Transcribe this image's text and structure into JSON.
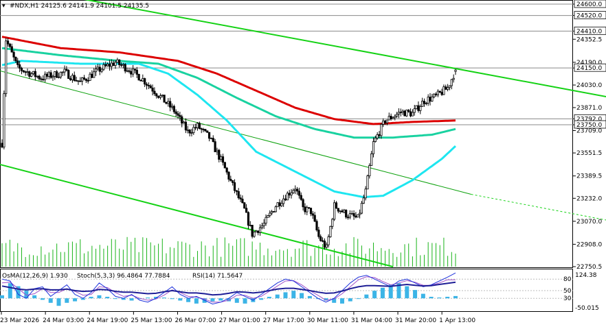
{
  "header": {
    "symbol_line": "#NDX,H1  24125.6 24141.9 24101.5 24135.5",
    "corner_mark": "▾"
  },
  "indicator_header": {
    "osma": "OsMA(12,26,9) 1.930",
    "stoch": "Stoch(5,3,3) 96.4864 77.7884",
    "rsi": "RSI(14) 71.5647"
  },
  "colors": {
    "candle": "#000000",
    "ema_red": "#dc0000",
    "ema_teal": "#19d2a0",
    "ema_cyan": "#1ee6f0",
    "channel_green": "#14d214",
    "channel_mid": "#0aa00a",
    "volume": "#19b419",
    "osma": "#3cb4e6",
    "stoch_main": "#1e32dc",
    "stoch_signal": "#a050c8",
    "rsi": "#1e1e96"
  },
  "chart_data": {
    "type": "candlestick",
    "symbol": "#NDX",
    "timeframe": "H1",
    "last": {
      "open": 24125.6,
      "high": 24141.9,
      "low": 24101.5,
      "close": 24135.5
    },
    "ylim": [
      22750.5,
      24600.0
    ],
    "y_ticks": [
      24600.0,
      24520.0,
      24410.0,
      24352.5,
      24190.0,
      24150.0,
      24030.0,
      23871.0,
      23792.0,
      23750.0,
      23709.0,
      23551.5,
      23389.5,
      23232.0,
      23070.0,
      22908.0,
      22750.5
    ],
    "level_labels": [
      24600.0,
      24520.0,
      24410.0,
      24150.0,
      23792.0,
      23750.0
    ],
    "x_labels": [
      "23 Mar 2026",
      "24 Mar 03:00",
      "24 Mar 19:00",
      "25 Mar 13:00",
      "26 Mar 07:00",
      "27 Mar 01:00",
      "27 Mar 17:00",
      "30 Mar 11:00",
      "31 Mar 04:00",
      "31 Mar 20:00",
      "1 Apr 13:00"
    ],
    "close_anchors": [
      [
        0,
        23620
      ],
      [
        2,
        24350
      ],
      [
        8,
        24150
      ],
      [
        20,
        24080
      ],
      [
        32,
        24120
      ],
      [
        40,
        24050
      ],
      [
        50,
        24140
      ],
      [
        58,
        24190
      ],
      [
        65,
        24140
      ],
      [
        72,
        24070
      ],
      [
        80,
        23960
      ],
      [
        88,
        23850
      ],
      [
        95,
        23700
      ],
      [
        100,
        23740
      ],
      [
        106,
        23660
      ],
      [
        112,
        23500
      ],
      [
        118,
        23320
      ],
      [
        124,
        23150
      ],
      [
        128,
        22980
      ],
      [
        134,
        23050
      ],
      [
        140,
        23180
      ],
      [
        146,
        23260
      ],
      [
        150,
        23310
      ],
      [
        154,
        23160
      ],
      [
        158,
        23140
      ],
      [
        162,
        22960
      ],
      [
        166,
        22880
      ],
      [
        170,
        23180
      ],
      [
        176,
        23120
      ],
      [
        182,
        23090
      ],
      [
        186,
        23280
      ],
      [
        190,
        23620
      ],
      [
        196,
        23780
      ],
      [
        204,
        23840
      ],
      [
        210,
        23830
      ],
      [
        216,
        23920
      ],
      [
        222,
        23950
      ],
      [
        228,
        24010
      ],
      [
        232,
        24135
      ]
    ],
    "bar_count": 233,
    "volumes_note": "",
    "ema_red_anchors": [
      [
        0,
        24370
      ],
      [
        30,
        24290
      ],
      [
        60,
        24260
      ],
      [
        90,
        24200
      ],
      [
        110,
        24110
      ],
      [
        130,
        23990
      ],
      [
        150,
        23870
      ],
      [
        170,
        23790
      ],
      [
        190,
        23755
      ],
      [
        210,
        23770
      ],
      [
        232,
        23780
      ]
    ],
    "ema_teal_anchors": [
      [
        0,
        24290
      ],
      [
        30,
        24240
      ],
      [
        60,
        24200
      ],
      [
        80,
        24180
      ],
      [
        100,
        24080
      ],
      [
        120,
        23940
      ],
      [
        140,
        23810
      ],
      [
        160,
        23720
      ],
      [
        180,
        23660
      ],
      [
        200,
        23660
      ],
      [
        220,
        23680
      ],
      [
        232,
        23720
      ]
    ],
    "ema_cyan_anchors": [
      [
        0,
        24170
      ],
      [
        10,
        24200
      ],
      [
        40,
        24180
      ],
      [
        70,
        24180
      ],
      [
        85,
        24110
      ],
      [
        100,
        23960
      ],
      [
        115,
        23780
      ],
      [
        130,
        23560
      ],
      [
        150,
        23420
      ],
      [
        170,
        23280
      ],
      [
        185,
        23240
      ],
      [
        195,
        23250
      ],
      [
        210,
        23360
      ],
      [
        225,
        23510
      ],
      [
        232,
        23600
      ]
    ],
    "channel_upper": [
      [
        -15,
        24780
      ],
      [
        320,
        23920
      ]
    ],
    "channel_lower": [
      [
        -15,
        23520
      ],
      [
        200,
        22750
      ]
    ],
    "channel_mid": [
      [
        -15,
        24180
      ],
      [
        240,
        23260
      ]
    ],
    "channel_mid_ext": [
      [
        240,
        23260
      ],
      [
        320,
        23050
      ]
    ],
    "osma_levels": [
      80,
      50,
      30
    ],
    "osma_extra_labels": [
      "124.38",
      "-50.015"
    ],
    "osma_values": [
      0.2,
      1.0,
      0.8,
      0.5,
      0.2,
      -0.1,
      -0.3,
      -0.5,
      -0.3,
      -0.2,
      -0.1,
      0.1,
      0.2,
      0.1,
      0.0,
      -0.1,
      -0.15,
      -0.05,
      0.05,
      0.1,
      0.05,
      -0.05,
      -0.15,
      -0.25,
      -0.35,
      -0.3,
      -0.2,
      -0.15,
      -0.2,
      -0.3,
      -0.35,
      -0.25,
      -0.1,
      0.1,
      0.25,
      0.4,
      0.5,
      0.35,
      0.15,
      0.0,
      -0.15,
      -0.3,
      -0.35,
      -0.2,
      0.0,
      0.25,
      0.5,
      0.7,
      0.9,
      1.0,
      0.8,
      0.55,
      0.3,
      0.1,
      0.05,
      0.1,
      0.15
    ],
    "stoch_main": [
      80,
      75,
      40,
      30,
      55,
      60,
      35,
      50,
      65,
      40,
      30,
      45,
      70,
      55,
      35,
      30,
      40,
      25,
      20,
      30,
      45,
      60,
      40,
      30,
      35,
      25,
      15,
      20,
      30,
      45,
      35,
      25,
      40,
      55,
      70,
      80,
      75,
      60,
      45,
      30,
      20,
      30,
      50,
      70,
      85,
      90,
      80,
      70,
      60,
      75,
      80,
      70,
      60,
      65,
      75,
      85,
      96
    ],
    "stoch_signal": [
      70,
      72,
      55,
      38,
      42,
      55,
      45,
      45,
      55,
      48,
      38,
      40,
      60,
      58,
      45,
      35,
      38,
      30,
      25,
      28,
      38,
      52,
      45,
      35,
      33,
      28,
      20,
      20,
      25,
      38,
      38,
      30,
      35,
      48,
      62,
      75,
      76,
      65,
      50,
      38,
      25,
      28,
      42,
      60,
      78,
      86,
      84,
      74,
      65,
      70,
      76,
      72,
      64,
      64,
      70,
      78,
      78
    ],
    "rsi_values": [
      62,
      58,
      54,
      52,
      54,
      55,
      52,
      52,
      54,
      50,
      48,
      49,
      53,
      52,
      48,
      46,
      46,
      44,
      42,
      43,
      47,
      50,
      47,
      44,
      44,
      42,
      39,
      40,
      43,
      47,
      46,
      44,
      46,
      50,
      54,
      56,
      56,
      53,
      50,
      46,
      43,
      44,
      49,
      55,
      60,
      63,
      63,
      62,
      61,
      64,
      66,
      64,
      62,
      63,
      66,
      69,
      72
    ]
  }
}
